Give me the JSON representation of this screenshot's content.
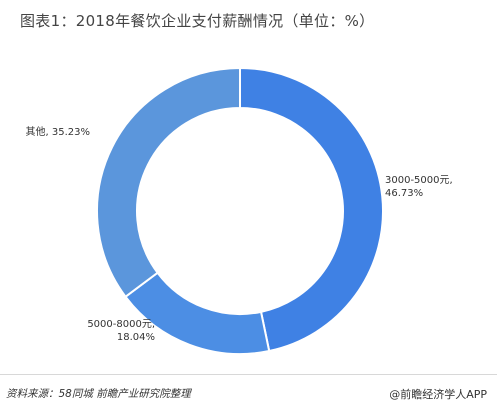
{
  "title": "图表1：2018年餐饮企业支付薪酬情况（单位：%）",
  "footer": {
    "source": "资料来源：58同城 前瞻产业研究院整理",
    "brand": "前瞻经济学人APP",
    "brand_icon": "at-icon"
  },
  "colors": {
    "slices": [
      "#3f81e4",
      "#4c8ee4",
      "#5b96dc"
    ],
    "stroke": "#ffffff"
  },
  "chart_data": {
    "type": "pie",
    "variant": "donut",
    "title": "图表1：2018年餐饮企业支付薪酬情况（单位：%）",
    "unit": "%",
    "categories": [
      "3000-5000元",
      "5000-8000元",
      "其他"
    ],
    "values": [
      46.73,
      18.04,
      35.23
    ],
    "labels": [
      [
        "3000-5000元,",
        "46.73%"
      ],
      [
        "5000-8000元,",
        "18.04%"
      ],
      [
        "其他, 35.23%"
      ]
    ],
    "start": "12 o'clock",
    "direction": "clockwise"
  }
}
